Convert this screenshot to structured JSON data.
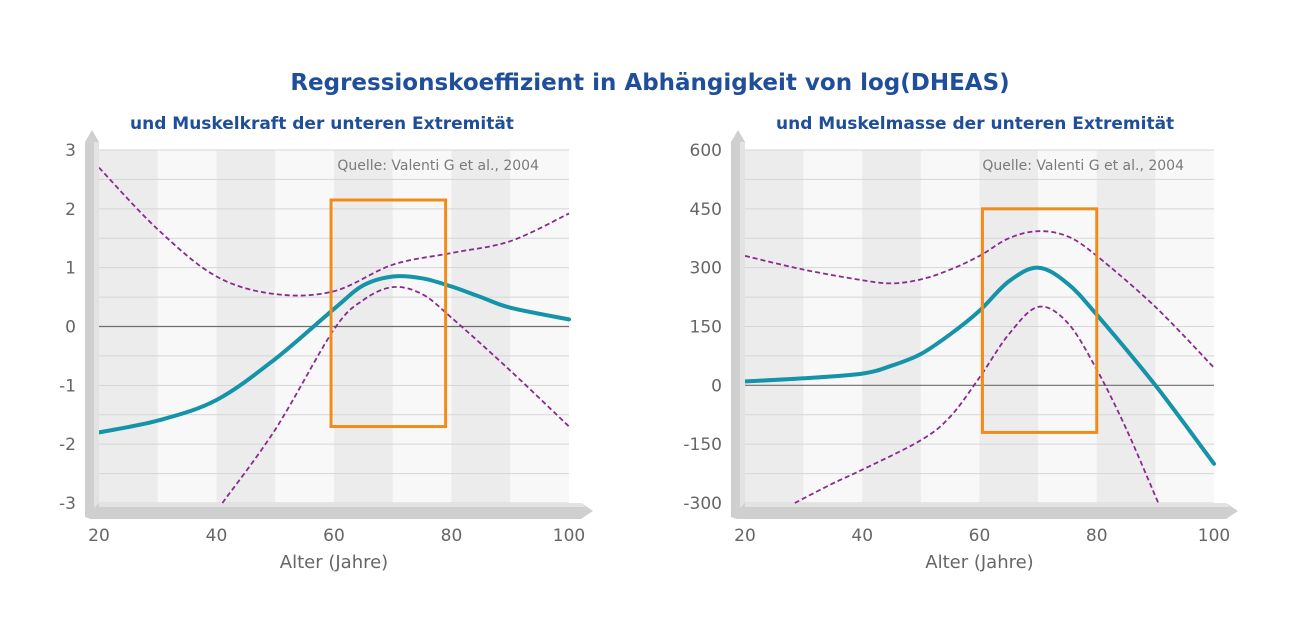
{
  "title": "Regressionskoeffizient in Abhängigkeit von log(DHEAS)",
  "colors": {
    "title": "#1f4e9a",
    "main_curve": "#1593a8",
    "ci_curve": "#8a2a8e",
    "highlight_box": "#f08c1a",
    "axis_text": "#666666"
  },
  "chart_data": [
    {
      "type": "line",
      "subtitle": "und Muskelkraft der unteren Extremität",
      "annotation": "Quelle: Valenti G et al., 2004",
      "xlabel": "Alter (Jahre)",
      "ylabel": "",
      "xlim": [
        20,
        100
      ],
      "ylim": [
        -3,
        3
      ],
      "x_ticks": [
        20,
        40,
        60,
        80,
        100
      ],
      "y_ticks": [
        3,
        2,
        1,
        0,
        -1,
        -2,
        -3
      ],
      "y_tick_labels": [
        "3",
        "2",
        "1",
        "0",
        "-1",
        "-2",
        "-3"
      ],
      "grid": true,
      "zero_line": true,
      "highlight_box": {
        "x": [
          59.5,
          79
        ],
        "y": [
          -1.7,
          2.15
        ]
      },
      "series": [
        {
          "role": "estimate",
          "style": "solid",
          "x": [
            20,
            30,
            40,
            50,
            60,
            65,
            70,
            75,
            80,
            85,
            90,
            100
          ],
          "y": [
            -1.8,
            -1.6,
            -1.25,
            -0.55,
            0.3,
            0.7,
            0.85,
            0.82,
            0.68,
            0.5,
            0.32,
            0.12
          ]
        },
        {
          "role": "upper",
          "style": "dashed",
          "x": [
            20,
            30,
            40,
            50,
            60,
            70,
            80,
            90,
            100
          ],
          "y": [
            2.7,
            1.65,
            0.85,
            0.55,
            0.6,
            1.05,
            1.25,
            1.45,
            1.92
          ]
        },
        {
          "role": "lower",
          "style": "dashed",
          "x": [
            41,
            50,
            60,
            65,
            70,
            75,
            80,
            90,
            100
          ],
          "y": [
            -3,
            -1.75,
            -0.05,
            0.45,
            0.67,
            0.55,
            0.15,
            -0.75,
            -1.7
          ]
        }
      ]
    },
    {
      "type": "line",
      "subtitle": "und Muskelmasse der unteren Extremität",
      "annotation": "Quelle: Valenti G et al., 2004",
      "xlabel": "Alter (Jahre)",
      "ylabel": "",
      "xlim": [
        20,
        100
      ],
      "ylim": [
        -300,
        600
      ],
      "x_ticks": [
        20,
        40,
        60,
        80,
        100
      ],
      "y_ticks": [
        600,
        450,
        300,
        150,
        0,
        -150,
        -300
      ],
      "y_tick_labels": [
        "600",
        "450",
        "300",
        "150",
        "0",
        "-150",
        "-300"
      ],
      "grid": true,
      "zero_line": true,
      "highlight_box": {
        "x": [
          60.5,
          80
        ],
        "y": [
          -120,
          450
        ]
      },
      "series": [
        {
          "role": "estimate",
          "style": "solid",
          "x": [
            20,
            30,
            40,
            45,
            50,
            55,
            60,
            65,
            70,
            75,
            80,
            90,
            100
          ],
          "y": [
            10,
            18,
            30,
            50,
            80,
            130,
            190,
            265,
            300,
            260,
            180,
            0,
            -200
          ]
        },
        {
          "role": "upper",
          "style": "dashed",
          "x": [
            20,
            30,
            40,
            45,
            50,
            55,
            60,
            65,
            70,
            75,
            80,
            90,
            100
          ],
          "y": [
            330,
            295,
            268,
            260,
            270,
            295,
            330,
            375,
            393,
            380,
            330,
            200,
            45
          ]
        },
        {
          "role": "lower",
          "style": "dashed",
          "x": [
            28.5,
            35,
            40,
            50,
            55,
            60,
            65,
            70,
            75,
            80,
            85,
            90.5
          ],
          "y": [
            -300,
            -250,
            -215,
            -140,
            -80,
            20,
            130,
            200,
            160,
            40,
            -110,
            -300
          ]
        }
      ]
    }
  ]
}
